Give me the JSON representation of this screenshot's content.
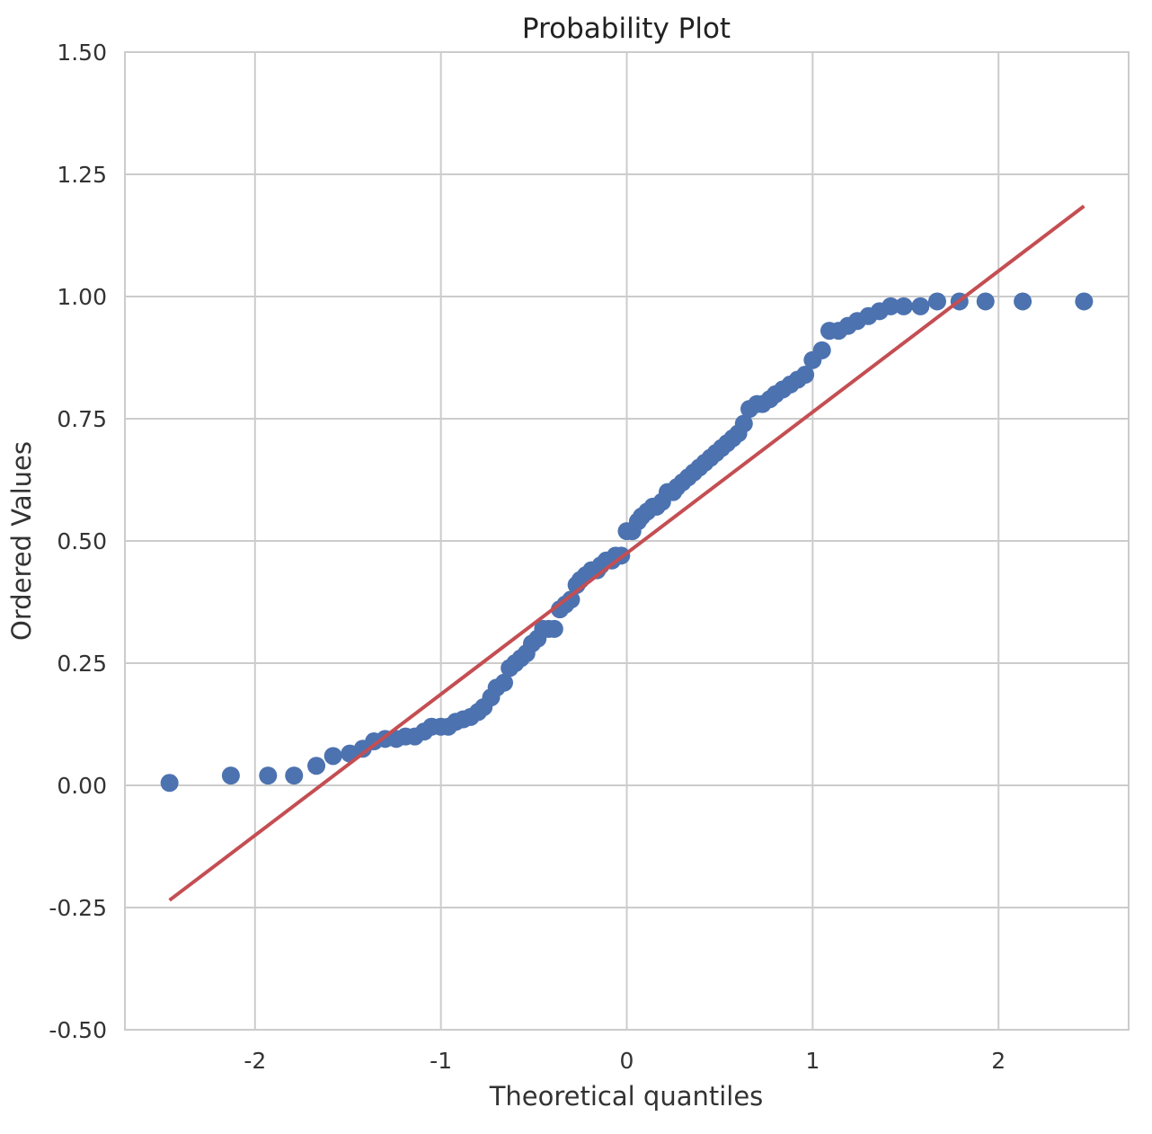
{
  "chart_data": {
    "type": "scatter",
    "title": "Probability Plot",
    "xlabel": "Theoretical quantiles",
    "ylabel": "Ordered Values",
    "xlim": [
      -2.7,
      2.7
    ],
    "ylim": [
      -0.5,
      1.5
    ],
    "xticks": [
      -2,
      -1,
      0,
      1,
      2
    ],
    "xtick_labels": [
      "-2",
      "-1",
      "0",
      "1",
      "2"
    ],
    "yticks": [
      -0.5,
      -0.25,
      0,
      0.25,
      0.5,
      0.75,
      1.0,
      1.25,
      1.5
    ],
    "ytick_labels": [
      "-0.50",
      "-0.25",
      "0.00",
      "0.25",
      "0.50",
      "0.75",
      "1.00",
      "1.25",
      "1.50"
    ],
    "grid": true,
    "colors": {
      "points": "#4c72b0",
      "fit_line": "#c44e52",
      "grid": "#cccccc"
    },
    "series": [
      {
        "kind": "points",
        "x": [
          -2.46,
          -2.13,
          -1.93,
          -1.79,
          -1.67,
          -1.58,
          -1.49,
          -1.42,
          -1.36,
          -1.3,
          -1.24,
          -1.19,
          -1.14,
          -1.09,
          -1.05,
          -1.0,
          -0.96,
          -0.92,
          -0.88,
          -0.84,
          -0.8,
          -0.77,
          -0.73,
          -0.7,
          -0.66,
          -0.63,
          -0.6,
          -0.57,
          -0.54,
          -0.51,
          -0.48,
          -0.45,
          -0.42,
          -0.39,
          -0.36,
          -0.33,
          -0.3,
          -0.27,
          -0.25,
          -0.22,
          -0.19,
          -0.16,
          -0.14,
          -0.11,
          -0.08,
          -0.06,
          -0.03,
          0.0,
          0.03,
          0.06,
          0.08,
          0.11,
          0.14,
          0.16,
          0.19,
          0.22,
          0.25,
          0.27,
          0.3,
          0.33,
          0.36,
          0.39,
          0.42,
          0.45,
          0.48,
          0.51,
          0.54,
          0.57,
          0.6,
          0.63,
          0.66,
          0.7,
          0.73,
          0.77,
          0.8,
          0.84,
          0.88,
          0.92,
          0.96,
          1.0,
          1.05,
          1.09,
          1.14,
          1.19,
          1.24,
          1.3,
          1.36,
          1.42,
          1.49,
          1.58,
          1.67,
          1.79,
          1.93,
          2.13,
          2.46
        ],
        "y": [
          0.005,
          0.02,
          0.02,
          0.02,
          0.04,
          0.06,
          0.065,
          0.075,
          0.09,
          0.095,
          0.095,
          0.1,
          0.1,
          0.11,
          0.12,
          0.12,
          0.12,
          0.13,
          0.135,
          0.14,
          0.15,
          0.16,
          0.18,
          0.2,
          0.21,
          0.24,
          0.25,
          0.26,
          0.27,
          0.29,
          0.3,
          0.32,
          0.32,
          0.32,
          0.36,
          0.37,
          0.38,
          0.41,
          0.42,
          0.43,
          0.44,
          0.44,
          0.45,
          0.46,
          0.46,
          0.47,
          0.47,
          0.52,
          0.52,
          0.54,
          0.55,
          0.56,
          0.57,
          0.57,
          0.58,
          0.6,
          0.6,
          0.61,
          0.62,
          0.63,
          0.64,
          0.65,
          0.66,
          0.67,
          0.68,
          0.69,
          0.7,
          0.71,
          0.72,
          0.74,
          0.77,
          0.78,
          0.78,
          0.79,
          0.8,
          0.81,
          0.82,
          0.83,
          0.84,
          0.87,
          0.89,
          0.93,
          0.93,
          0.94,
          0.95,
          0.96,
          0.97,
          0.98,
          0.98,
          0.98,
          0.99,
          0.99,
          0.99,
          0.99,
          0.99
        ]
      },
      {
        "kind": "line",
        "x": [
          -2.46,
          2.46
        ],
        "y": [
          -0.235,
          1.185
        ]
      }
    ]
  }
}
